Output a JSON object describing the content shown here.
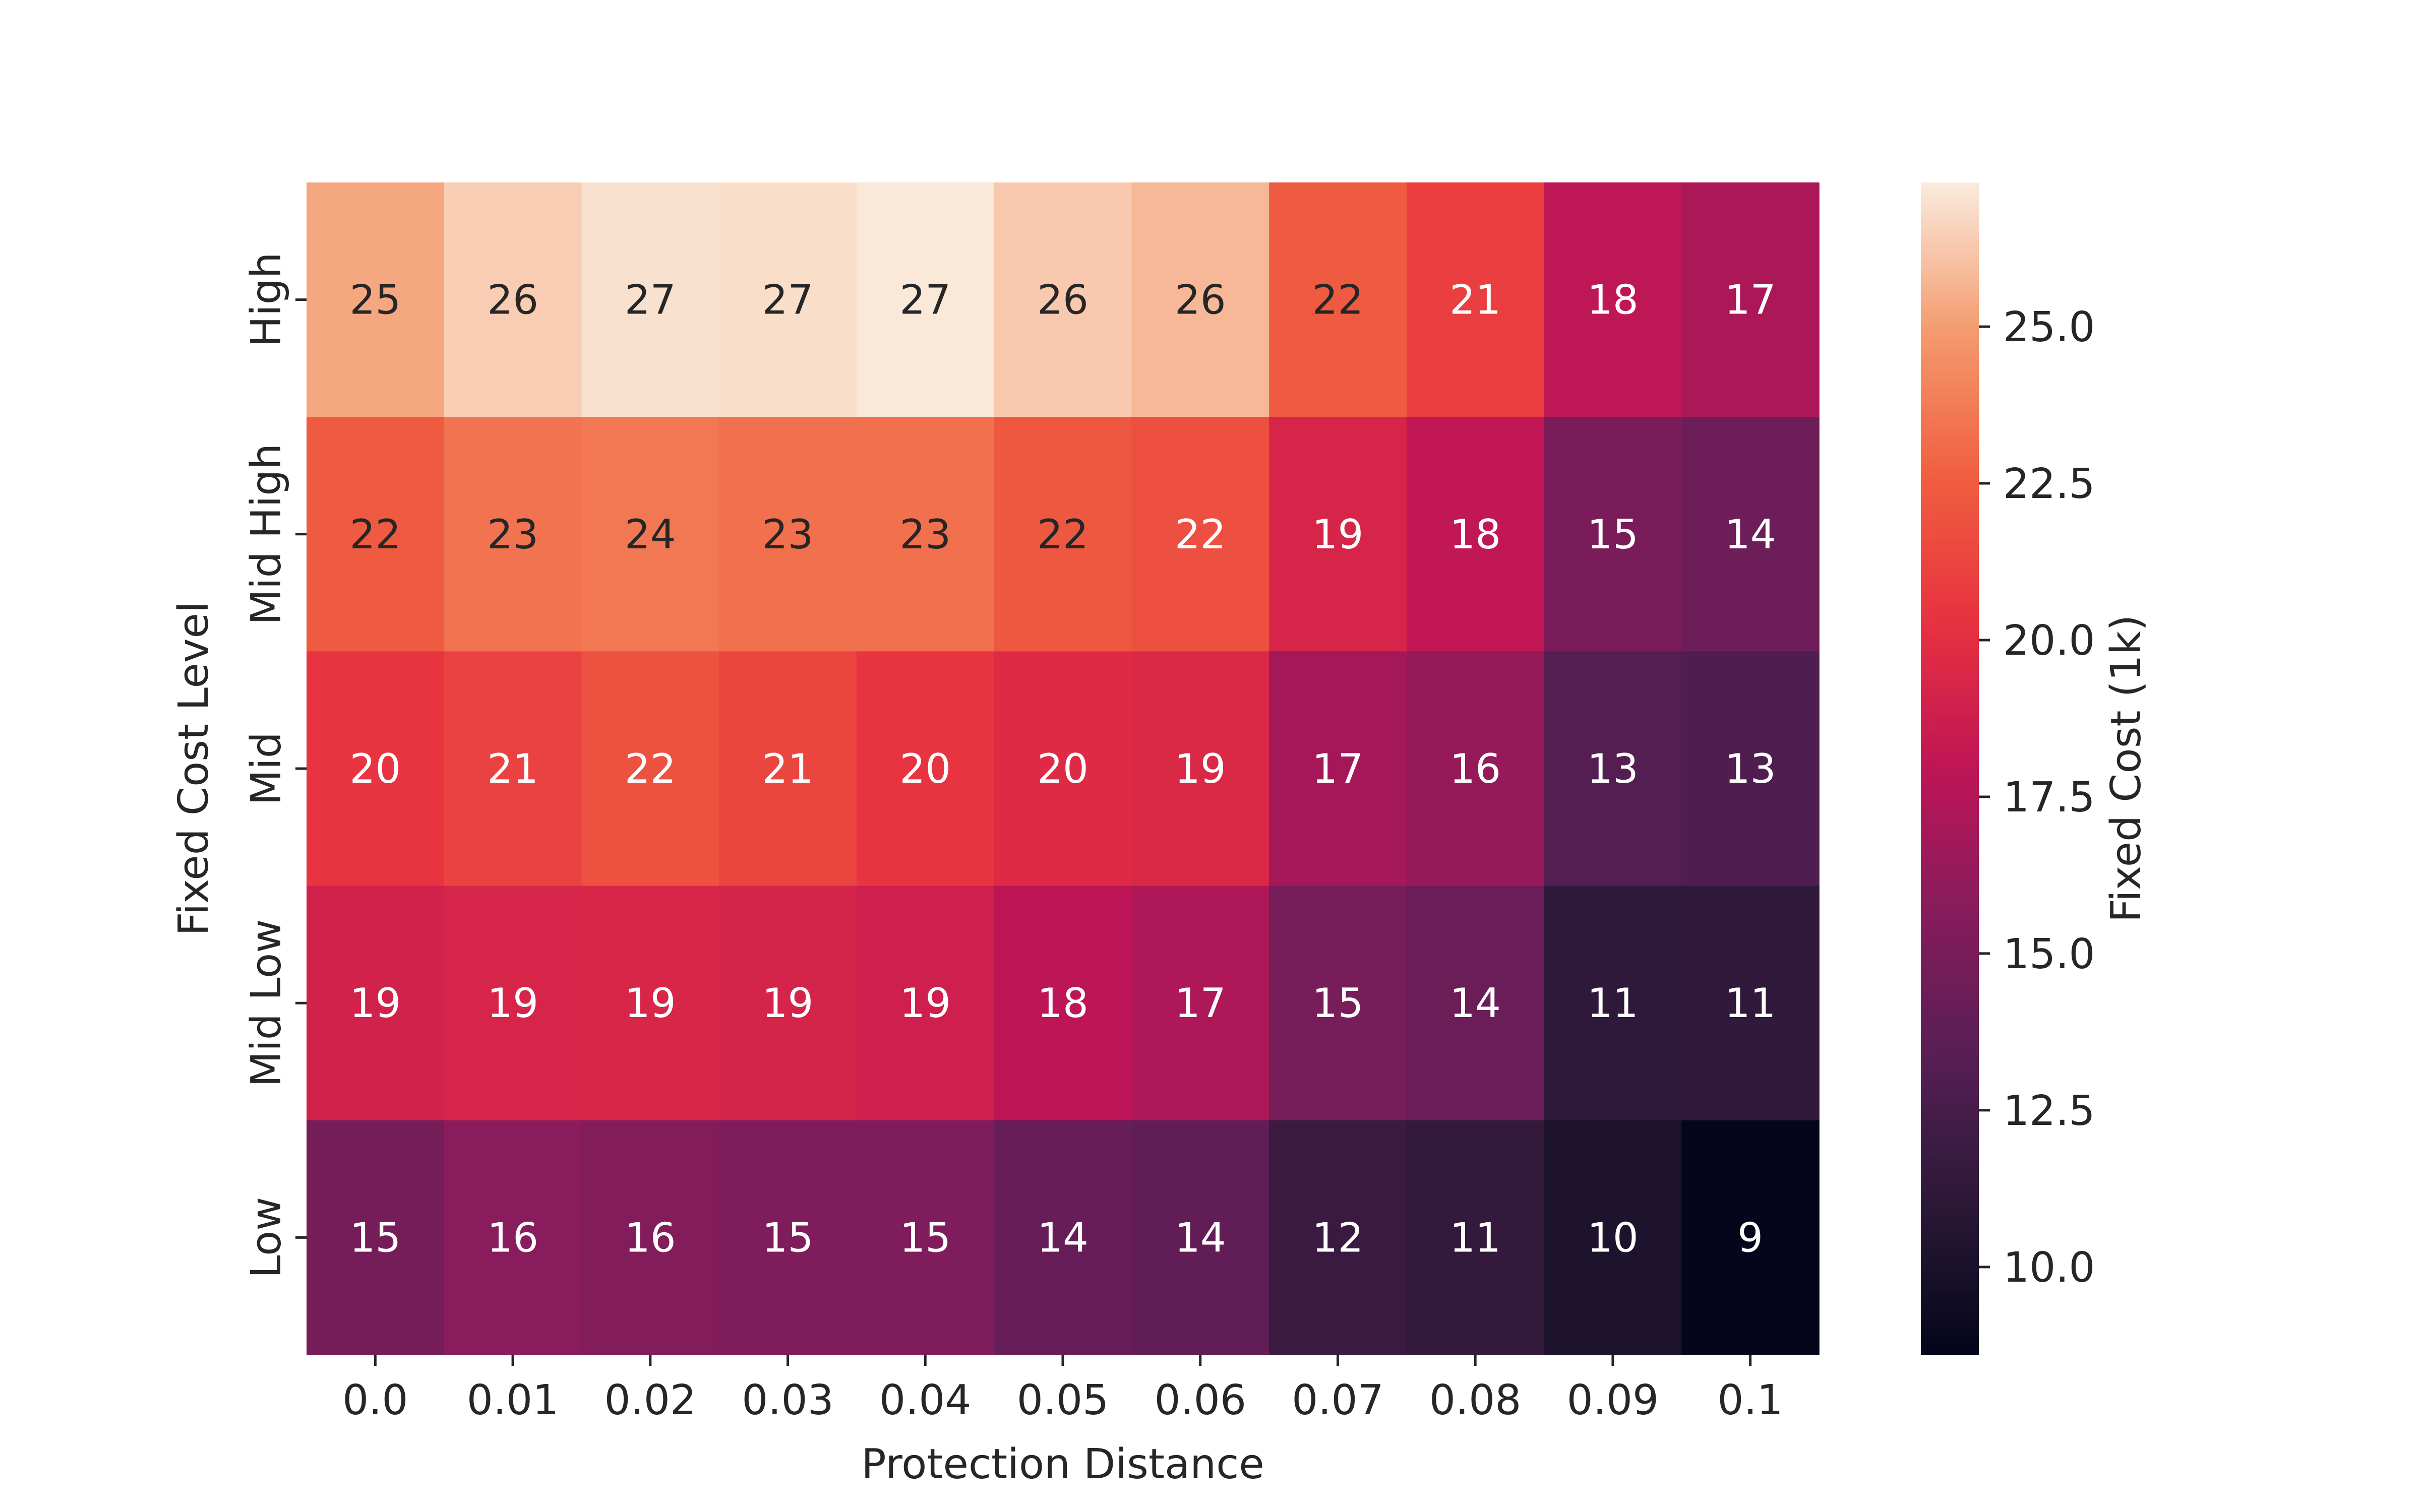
{
  "chart_data": {
    "type": "heatmap",
    "title": "",
    "xlabel": "Protection Distance",
    "ylabel": "Fixed Cost Level",
    "x_categories": [
      "0.0",
      "0.01",
      "0.02",
      "0.03",
      "0.04",
      "0.05",
      "0.06",
      "0.07",
      "0.08",
      "0.09",
      "0.1"
    ],
    "y_categories": [
      "High",
      "Mid High",
      "Mid",
      "Mid Low",
      "Low"
    ],
    "values": [
      [
        25.3,
        26.4,
        27.0,
        26.9,
        27.2,
        26.3,
        25.8,
        22.4,
        20.9,
        18.0,
        17.2
      ],
      [
        22.4,
        23.4,
        23.6,
        23.3,
        23.3,
        22.2,
        21.8,
        19.3,
        18.1,
        15.1,
        14.4
      ],
      [
        20.4,
        21.1,
        21.9,
        21.3,
        20.4,
        19.7,
        19.5,
        16.9,
        16.3,
        13.2,
        12.9
      ],
      [
        19.0,
        19.3,
        19.4,
        19.2,
        18.8,
        17.9,
        17.3,
        14.9,
        14.3,
        11.2,
        11.3
      ],
      [
        14.8,
        15.8,
        15.5,
        15.3,
        15.3,
        14.1,
        13.8,
        11.8,
        11.4,
        10.2,
        8.7
      ]
    ],
    "annotations": [
      [
        "25",
        "26",
        "27",
        "27",
        "27",
        "26",
        "26",
        "22",
        "21",
        "18",
        "17"
      ],
      [
        "22",
        "23",
        "24",
        "23",
        "23",
        "22",
        "22",
        "19",
        "18",
        "15",
        "14"
      ],
      [
        "20",
        "21",
        "22",
        "21",
        "20",
        "20",
        "19",
        "17",
        "16",
        "13",
        "13"
      ],
      [
        "19",
        "19",
        "19",
        "19",
        "19",
        "18",
        "17",
        "15",
        "14",
        "11",
        "11"
      ],
      [
        "15",
        "16",
        "16",
        "15",
        "15",
        "14",
        "14",
        "12",
        "11",
        "10",
        "9"
      ]
    ],
    "colorbar": {
      "label": "Fixed Cost (1k)",
      "range": [
        8.6,
        27.3
      ],
      "ticks": [
        10.0,
        12.5,
        15.0,
        17.5,
        20.0,
        22.5,
        25.0
      ],
      "tick_labels": [
        "10.0",
        "12.5",
        "15.0",
        "17.5",
        "20.0",
        "22.5",
        "25.0"
      ],
      "colormap": "rocket"
    },
    "grid": false
  }
}
